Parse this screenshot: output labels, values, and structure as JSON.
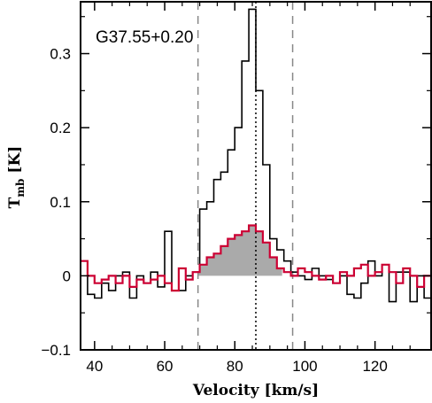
{
  "chart_data": {
    "type": "line",
    "title": "",
    "annotation": "G37.55+0.20",
    "xlabel": "Velocity [km/s]",
    "ylabel": "T",
    "ylabel_sub": "mb",
    "ylabel_unit": "[K]",
    "xlim": [
      36,
      136
    ],
    "ylim": [
      -0.1,
      0.37
    ],
    "xticks": [
      {
        "value": 40,
        "label": "40"
      },
      {
        "value": 60,
        "label": "60"
      },
      {
        "value": 80,
        "label": "80"
      },
      {
        "value": 100,
        "label": "100"
      },
      {
        "value": 120,
        "label": "120"
      }
    ],
    "yticks": [
      {
        "value": -0.1,
        "label": "−0.1"
      },
      {
        "value": 0,
        "label": "0"
      },
      {
        "value": 0.1,
        "label": "0.1"
      },
      {
        "value": 0.2,
        "label": "0.2"
      },
      {
        "value": 0.3,
        "label": "0.3"
      }
    ],
    "grid": false,
    "vlines": [
      {
        "x": 69.5,
        "style": "dashed",
        "color": "#888888"
      },
      {
        "x": 86.0,
        "style": "dotted",
        "color": "#000000"
      },
      {
        "x": 96.5,
        "style": "dashed",
        "color": "#888888"
      }
    ],
    "fill": {
      "from": 69.5,
      "to": 93.5,
      "color": "#aaaaaa"
    },
    "series": [
      {
        "color": "#000000",
        "style": "step",
        "x": [
          36,
          38,
          40,
          42,
          44,
          46,
          48,
          50,
          52,
          54,
          56,
          58,
          60,
          62,
          64,
          66,
          68,
          70,
          72,
          74,
          76,
          78,
          80,
          82,
          84,
          86,
          88,
          90,
          92,
          94,
          96,
          98,
          100,
          102,
          104,
          106,
          108,
          110,
          112,
          114,
          116,
          118,
          120,
          122,
          124,
          126,
          128,
          130,
          132,
          134
        ],
        "y": [
          0.02,
          -0.025,
          -0.03,
          -0.01,
          -0.02,
          0.0,
          0.005,
          -0.03,
          0.0,
          -0.01,
          0.005,
          -0.015,
          0.06,
          -0.02,
          -0.02,
          0.0,
          0.005,
          0.09,
          0.1,
          0.13,
          0.14,
          0.17,
          0.2,
          0.29,
          0.36,
          0.25,
          0.15,
          0.05,
          0.035,
          0.02,
          0.005,
          0.0,
          -0.005,
          0.01,
          0.0,
          -0.005,
          -0.01,
          0.0,
          -0.025,
          -0.03,
          -0.01,
          0.02,
          0.0,
          0.015,
          -0.035,
          0.005,
          0.005,
          -0.035,
          0.0,
          -0.03
        ]
      },
      {
        "color": "#cc0033",
        "style": "step",
        "x": [
          36,
          38,
          40,
          42,
          44,
          46,
          48,
          50,
          52,
          54,
          56,
          58,
          60,
          62,
          64,
          66,
          68,
          70,
          72,
          74,
          76,
          78,
          80,
          82,
          84,
          86,
          88,
          90,
          92,
          94,
          96,
          98,
          100,
          102,
          104,
          106,
          108,
          110,
          112,
          114,
          116,
          118,
          120,
          122,
          124,
          126,
          128,
          130,
          132,
          134
        ],
        "y": [
          0.02,
          0.0,
          -0.01,
          -0.005,
          0.0,
          -0.01,
          0.0,
          -0.015,
          -0.005,
          -0.01,
          -0.005,
          0.0,
          -0.01,
          -0.02,
          0.01,
          -0.005,
          0.005,
          0.015,
          0.025,
          0.03,
          0.04,
          0.05,
          0.055,
          0.06,
          0.068,
          0.06,
          0.045,
          0.025,
          0.01,
          0.005,
          0.0,
          0.01,
          0.005,
          0.0,
          -0.005,
          0.0,
          -0.01,
          0.005,
          0.0,
          0.01,
          0.015,
          0.0,
          0.005,
          0.015,
          0.005,
          -0.01,
          0.01,
          0.0,
          -0.015,
          0.0
        ]
      }
    ]
  }
}
